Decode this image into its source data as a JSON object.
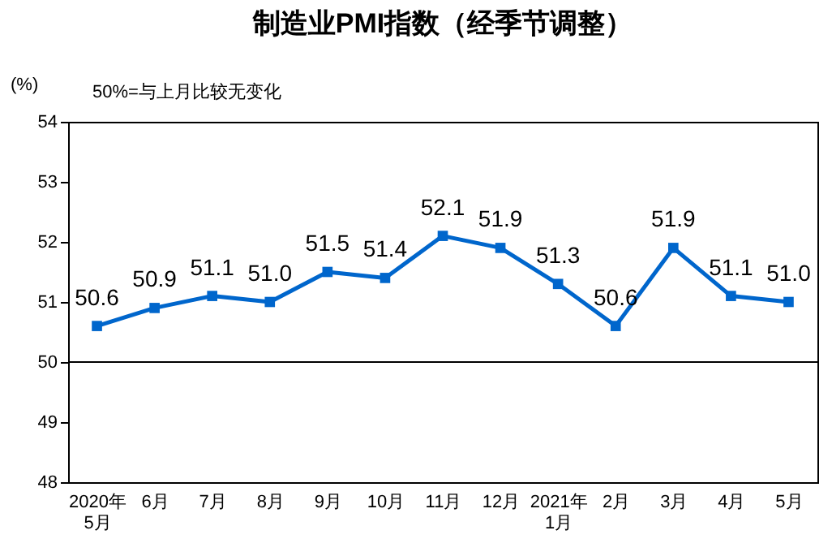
{
  "chart_data": {
    "type": "line",
    "title": "制造业PMI指数（经季节调整）",
    "ylabel": "(%)",
    "annotations": [
      "50%=与上月比较无变化"
    ],
    "categories": [
      "2020年\n5月",
      "6月",
      "7月",
      "8月",
      "9月",
      "10月",
      "11月",
      "12月",
      "2021年\n1月",
      "2月",
      "3月",
      "4月",
      "5月"
    ],
    "series": [
      {
        "color": "#0066cc",
        "values": [
          50.6,
          50.9,
          51.1,
          51.0,
          51.5,
          51.4,
          52.1,
          51.9,
          51.3,
          50.6,
          51.9,
          51.1,
          51.0
        ],
        "value_labels": [
          "50.6",
          "50.9",
          "51.1",
          "51.0",
          "51.5",
          "51.4",
          "52.1",
          "51.9",
          "51.3",
          "50.6",
          "51.9",
          "51.1",
          "51.0"
        ]
      }
    ],
    "ylim": [
      48,
      54
    ],
    "yticks": [
      48,
      49,
      50,
      51,
      52,
      53,
      54
    ],
    "grid": false,
    "marker": "square",
    "line_style": "solid",
    "ref_lines": [
      {
        "axis": "y",
        "value": 50,
        "label": null,
        "color": "#000000"
      }
    ]
  }
}
